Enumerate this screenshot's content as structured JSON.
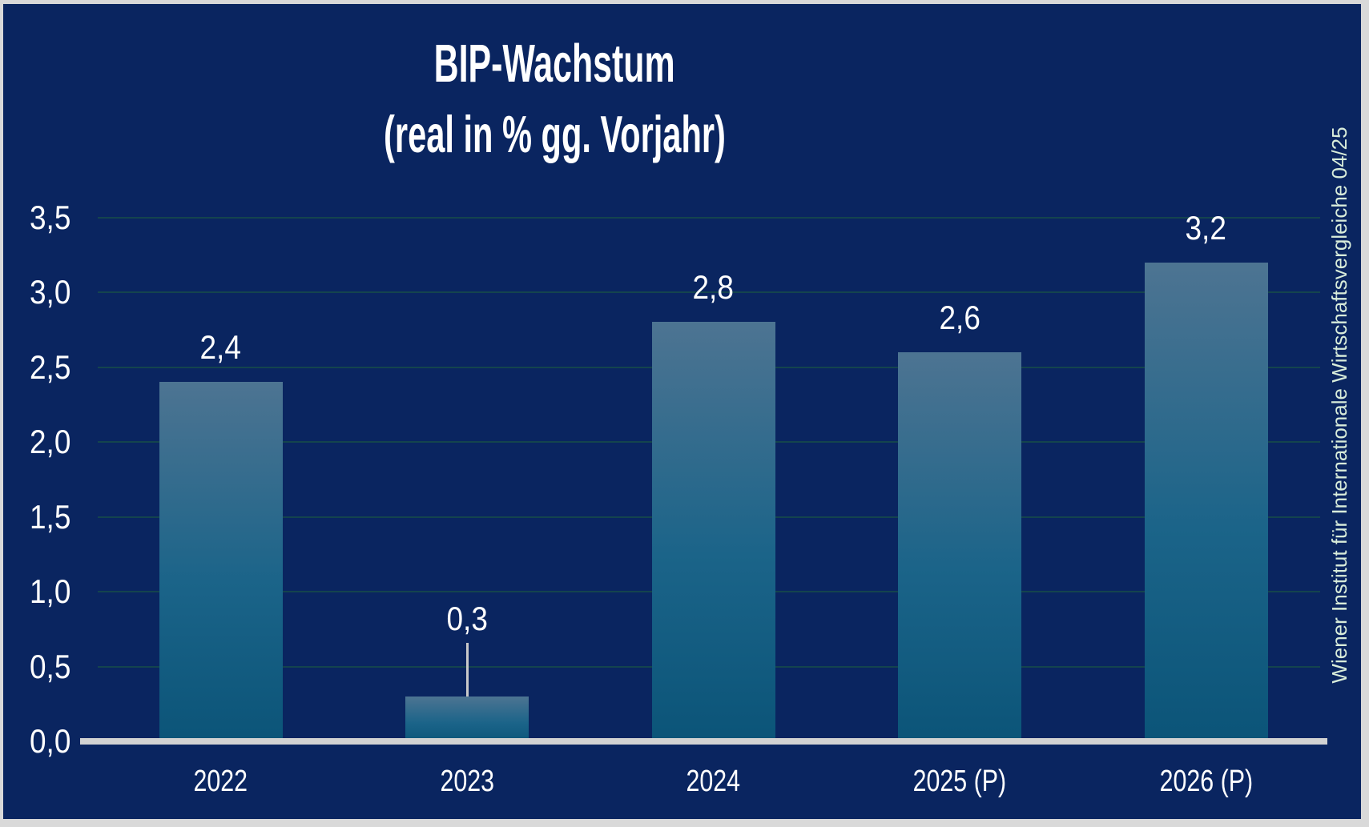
{
  "chart_data": {
    "type": "bar",
    "title": "BIP-Wachstum",
    "subtitle": "(real in % gg. Vorjahr)",
    "categories": [
      "2022",
      "2023",
      "2024",
      "2025 (P)",
      "2026 (P)"
    ],
    "values": [
      2.4,
      0.3,
      2.8,
      2.6,
      3.2
    ],
    "value_labels": [
      "2,4",
      "0,3",
      "2,8",
      "2,6",
      "3,2"
    ],
    "label_callout": [
      false,
      true,
      false,
      false,
      false
    ],
    "ylim": [
      0,
      3.5
    ],
    "ytick_step": 0.5,
    "ytick_labels": [
      "0,0",
      "0,5",
      "1,0",
      "1,5",
      "2,0",
      "2,5",
      "3,0",
      "3,5"
    ],
    "grid": "horizontal-only",
    "legend": "none",
    "xlabel": "",
    "ylabel": "",
    "source_note": "Wiener Institut für Internationale Wirtschaftsvergleiche 04/25"
  },
  "colors": {
    "background": "#0a2560",
    "frame": "#d9d9d9",
    "bar_gradient_top": "#4d7492",
    "bar_gradient_bottom": "#0b5478",
    "gridline": "#14444e",
    "axis_line": "#d2d2d2",
    "leader_line": "#c9c9c9",
    "label_text": "#ffffff",
    "source_text": "#d8ecda"
  }
}
